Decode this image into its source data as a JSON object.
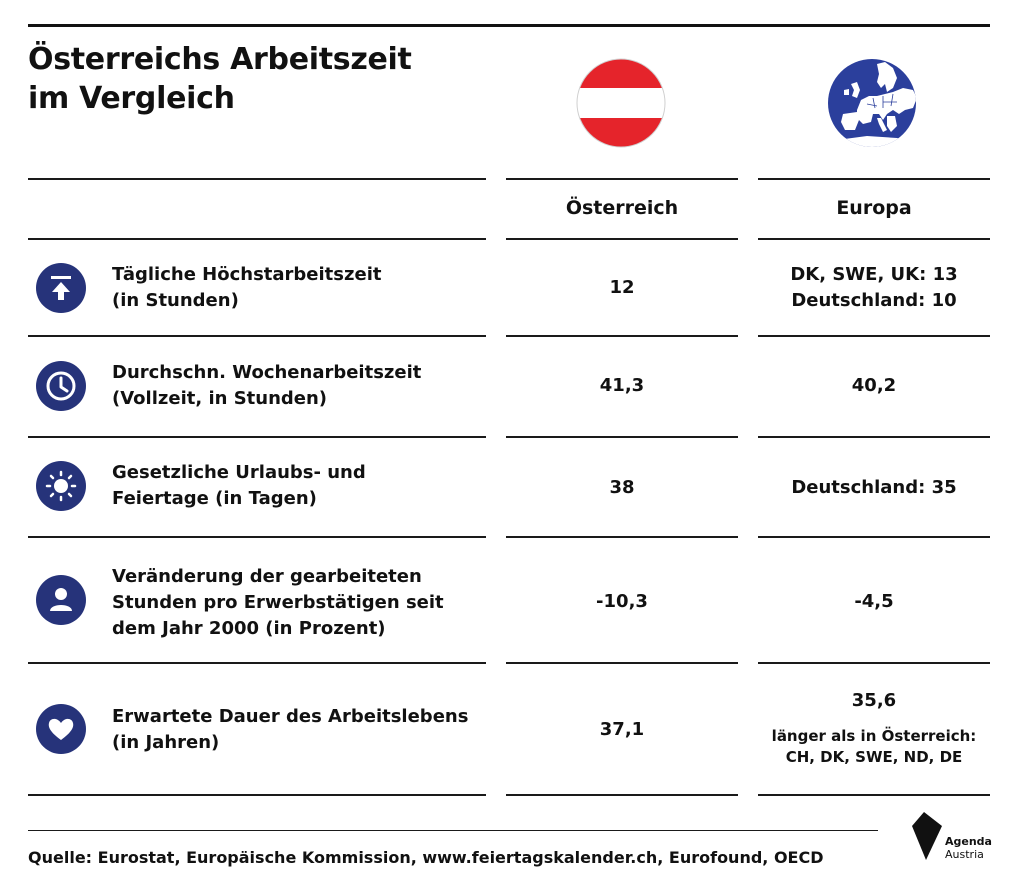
{
  "chart_data": {
    "type": "table",
    "title": "Österreichs Arbeitszeit im Vergleich",
    "title_lines": [
      "Österreichs Arbeitszeit",
      "im Vergleich"
    ],
    "columns": [
      "Österreich",
      "Europa"
    ],
    "rows": [
      {
        "icon": "upload-arrow-icon",
        "label_lines": [
          "Tägliche Höchstarbeitszeit",
          "(in Stunden)"
        ],
        "austria": "12",
        "europe_lines": [
          "DK, SWE, UK: 13",
          "Deutschland: 10"
        ]
      },
      {
        "icon": "clock-icon",
        "label_lines": [
          "Durchschn. Wochenarbeitszeit",
          "(Vollzeit, in Stunden)"
        ],
        "austria": "41,3",
        "europe_lines": [
          "40,2"
        ]
      },
      {
        "icon": "sun-icon",
        "label_lines": [
          "Gesetzliche Urlaubs- und",
          "Feiertage (in Tagen)"
        ],
        "austria": "38",
        "europe_lines": [
          "Deutschland: 35"
        ]
      },
      {
        "icon": "person-icon",
        "label_lines": [
          "Veränderung der gearbeiteten",
          "Stunden pro Erwerbstätigen seit",
          "dem Jahr 2000 (in Prozent)"
        ],
        "austria": "-10,3",
        "europe_lines": [
          "-4,5"
        ]
      },
      {
        "icon": "heart-icon",
        "label_lines": [
          "Erwartete Dauer des Arbeitslebens",
          "(in Jahren)"
        ],
        "austria": "37,1",
        "europe_lines": [
          "35,6"
        ],
        "europe_note_lines": [
          "länger als in Österreich:",
          "CH, DK, SWE, ND, DE"
        ]
      }
    ]
  },
  "flags": {
    "austria": "austria-flag-icon",
    "europe": "europe-globe-icon"
  },
  "colors": {
    "navy": "#26337a",
    "red": "#e5242b",
    "text": "#111111"
  },
  "source": "Quelle: Eurostat, Europäische Kommission, www.feiertagskalender.ch, Eurofound, OECD",
  "logo": {
    "line1": "Agenda",
    "line2": "Austria"
  }
}
